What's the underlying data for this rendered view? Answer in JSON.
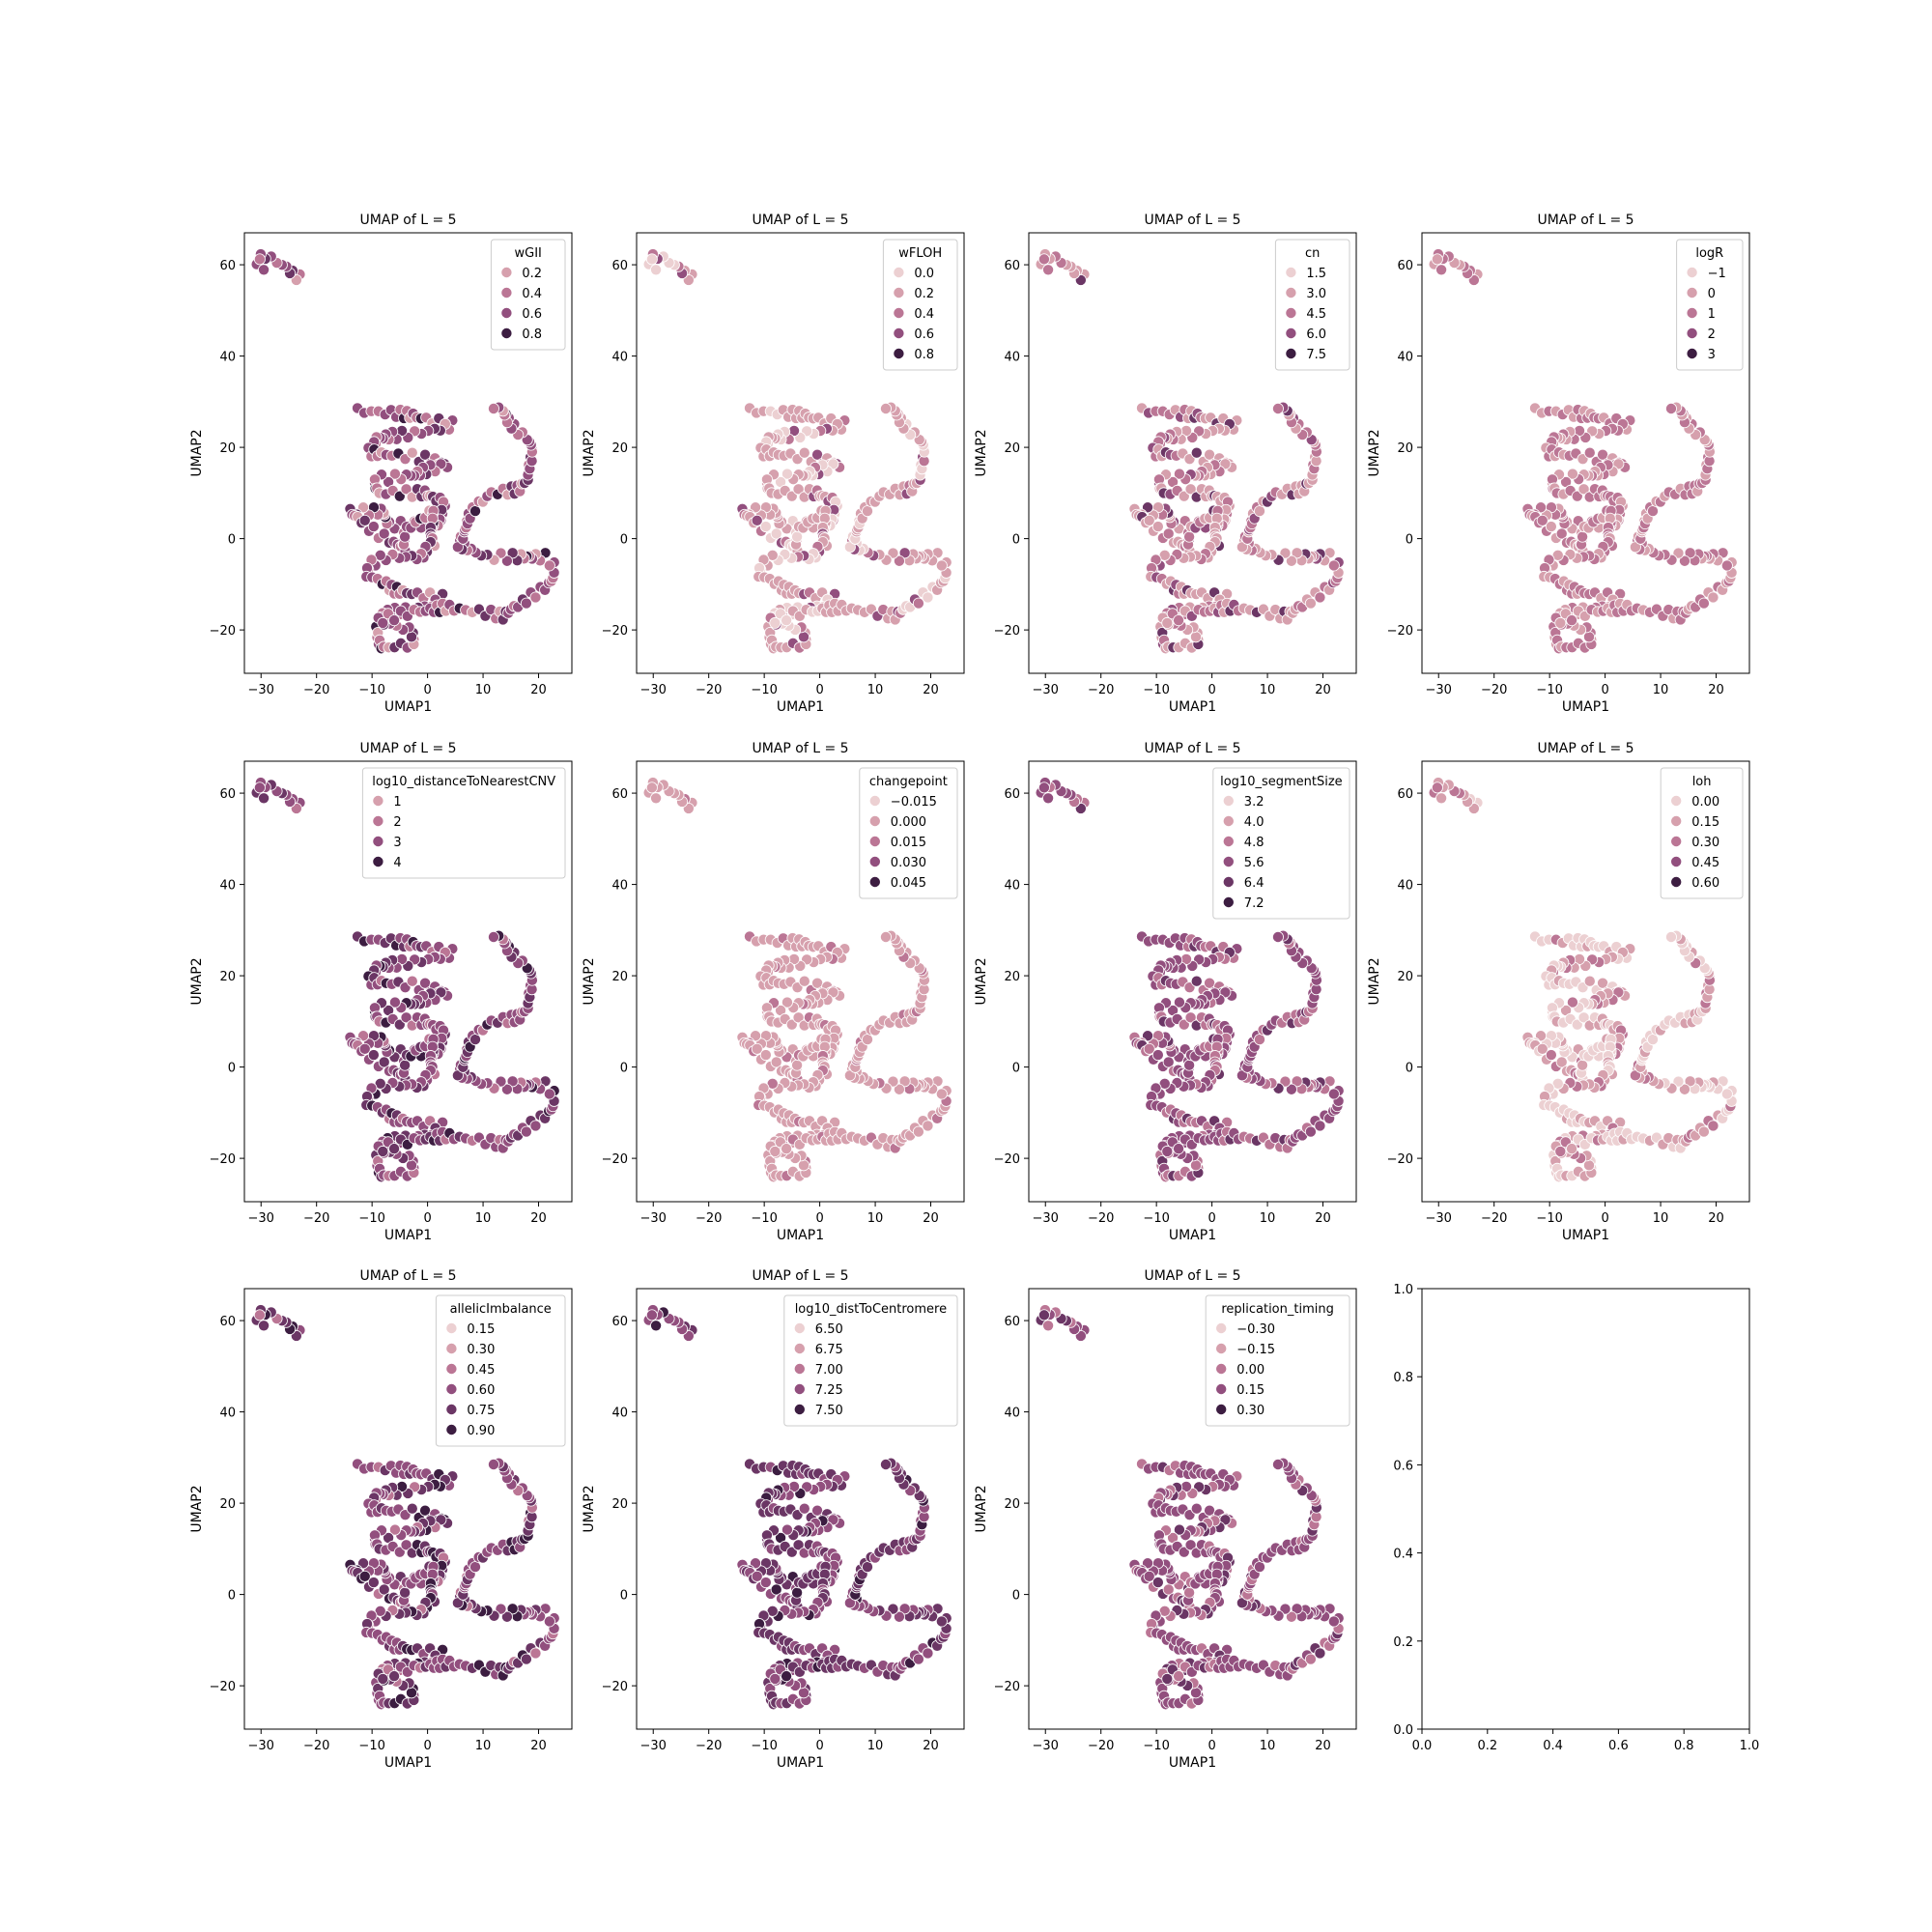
{
  "palette": [
    "#ecd0d2",
    "#d6a0ad",
    "#bb7695",
    "#924f7e",
    "#6b3665",
    "#3c1d41"
  ],
  "chart_data": [
    {
      "type": "scatter",
      "title": "UMAP of L = 5",
      "xlabel": "UMAP1",
      "ylabel": "UMAP2",
      "xlim": [
        -33,
        26
      ],
      "ylim": [
        -29.5,
        67
      ],
      "xticks": [
        "−30",
        "−20",
        "−10",
        "0",
        "10",
        "20"
      ],
      "yticks": [
        "−20",
        "0",
        "20",
        "40",
        "60"
      ],
      "legend": {
        "title": "wGII",
        "items": [
          "0.2",
          "0.4",
          "0.6",
          "0.8"
        ],
        "levels": [
          1,
          2,
          3,
          5
        ]
      },
      "pattern": [
        2,
        3,
        4,
        3,
        3,
        5,
        2,
        1,
        3,
        4,
        2,
        3
      ]
    },
    {
      "type": "scatter",
      "title": "UMAP of L = 5",
      "xlabel": "UMAP1",
      "ylabel": "UMAP2",
      "xlim": [
        -33,
        26
      ],
      "ylim": [
        -29.5,
        67
      ],
      "xticks": [
        "−30",
        "−20",
        "−10",
        "0",
        "10",
        "20"
      ],
      "yticks": [
        "−20",
        "0",
        "20",
        "40",
        "60"
      ],
      "legend": {
        "title": "wFLOH",
        "items": [
          "0.0",
          "0.2",
          "0.4",
          "0.6",
          "0.8"
        ],
        "levels": [
          0,
          1,
          2,
          3,
          5
        ]
      },
      "pattern": [
        1,
        0,
        1,
        1,
        2,
        1,
        0,
        1,
        1,
        3,
        1,
        0
      ]
    },
    {
      "type": "scatter",
      "title": "UMAP of L = 5",
      "xlabel": "UMAP1",
      "ylabel": "UMAP2",
      "xlim": [
        -33,
        26
      ],
      "ylim": [
        -29.5,
        67
      ],
      "xticks": [
        "−30",
        "−20",
        "−10",
        "0",
        "10",
        "20"
      ],
      "yticks": [
        "−20",
        "0",
        "20",
        "40",
        "60"
      ],
      "legend": {
        "title": "cn",
        "items": [
          "1.5",
          "3.0",
          "4.5",
          "6.0",
          "7.5"
        ],
        "levels": [
          0,
          1,
          2,
          3,
          5
        ]
      },
      "pattern": [
        1,
        2,
        1,
        3,
        1,
        1,
        2,
        4,
        1,
        1,
        2,
        1
      ]
    },
    {
      "type": "scatter",
      "title": "UMAP of L = 5",
      "xlabel": "UMAP1",
      "ylabel": "UMAP2",
      "xlim": [
        -33,
        26
      ],
      "ylim": [
        -29.5,
        67
      ],
      "xticks": [
        "−30",
        "−20",
        "−10",
        "0",
        "10",
        "20"
      ],
      "yticks": [
        "−20",
        "0",
        "20",
        "40",
        "60"
      ],
      "legend": {
        "title": "logR",
        "items": [
          "−1",
          "0",
          "1",
          "2",
          "3"
        ],
        "levels": [
          0,
          1,
          2,
          3,
          5
        ]
      },
      "pattern": [
        1,
        2,
        2,
        1,
        2,
        2,
        1,
        2,
        1,
        2,
        2,
        1
      ]
    },
    {
      "type": "scatter",
      "title": "UMAP of L = 5",
      "xlabel": "UMAP1",
      "ylabel": "UMAP2",
      "xlim": [
        -33,
        26
      ],
      "ylim": [
        -29.5,
        67
      ],
      "xticks": [
        "−30",
        "−20",
        "−10",
        "0",
        "10",
        "20"
      ],
      "yticks": [
        "−20",
        "0",
        "20",
        "40",
        "60"
      ],
      "legend": {
        "title": "log10_distanceToNearestCNV",
        "items": [
          "1",
          "2",
          "3",
          "4"
        ],
        "levels": [
          1,
          2,
          3,
          5
        ]
      },
      "pattern": [
        3,
        4,
        3,
        5,
        3,
        4,
        3,
        2,
        4,
        3,
        3,
        4
      ]
    },
    {
      "type": "scatter",
      "title": "UMAP of L = 5",
      "xlabel": "UMAP1",
      "ylabel": "UMAP2",
      "xlim": [
        -33,
        26
      ],
      "ylim": [
        -29.5,
        67
      ],
      "xticks": [
        "−30",
        "−20",
        "−10",
        "0",
        "10",
        "20"
      ],
      "yticks": [
        "−20",
        "0",
        "20",
        "40",
        "60"
      ],
      "legend": {
        "title": "changepoint",
        "items": [
          "−0.015",
          "0.000",
          "0.015",
          "0.030",
          "0.045"
        ],
        "levels": [
          0,
          1,
          2,
          3,
          5
        ]
      },
      "pattern": [
        1,
        1,
        2,
        1,
        1,
        1,
        1,
        1,
        2,
        1,
        1,
        1
      ]
    },
    {
      "type": "scatter",
      "title": "UMAP of L = 5",
      "xlabel": "UMAP1",
      "ylabel": "UMAP2",
      "xlim": [
        -33,
        26
      ],
      "ylim": [
        -29.5,
        67
      ],
      "xticks": [
        "−30",
        "−20",
        "−10",
        "0",
        "10",
        "20"
      ],
      "yticks": [
        "−20",
        "0",
        "20",
        "40",
        "60"
      ],
      "legend": {
        "title": "log10_segmentSize",
        "items": [
          "3.2",
          "4.0",
          "4.8",
          "5.6",
          "6.4",
          "7.2"
        ],
        "levels": [
          0,
          1,
          2,
          3,
          4,
          5
        ]
      },
      "pattern": [
        2,
        3,
        2,
        3,
        3,
        2,
        3,
        4,
        3,
        2,
        3,
        3
      ]
    },
    {
      "type": "scatter",
      "title": "UMAP of L = 5",
      "xlabel": "UMAP1",
      "ylabel": "UMAP2",
      "xlim": [
        -33,
        26
      ],
      "ylim": [
        -29.5,
        67
      ],
      "xticks": [
        "−30",
        "−20",
        "−10",
        "0",
        "10",
        "20"
      ],
      "yticks": [
        "−20",
        "0",
        "20",
        "40",
        "60"
      ],
      "legend": {
        "title": "loh",
        "items": [
          "0.00",
          "0.15",
          "0.30",
          "0.45",
          "0.60"
        ],
        "levels": [
          0,
          1,
          2,
          3,
          5
        ]
      },
      "pattern": [
        0,
        1,
        0,
        0,
        1,
        0,
        2,
        1,
        0,
        1,
        0,
        2
      ]
    },
    {
      "type": "scatter",
      "title": "UMAP of L = 5",
      "xlabel": "UMAP1",
      "ylabel": "UMAP2",
      "xlim": [
        -33,
        26
      ],
      "ylim": [
        -29.5,
        67
      ],
      "xticks": [
        "−30",
        "−20",
        "−10",
        "0",
        "10",
        "20"
      ],
      "yticks": [
        "−20",
        "0",
        "20",
        "40",
        "60"
      ],
      "legend": {
        "title": "allelicImbalance",
        "items": [
          "0.15",
          "0.30",
          "0.45",
          "0.60",
          "0.75",
          "0.90"
        ],
        "levels": [
          0,
          1,
          2,
          3,
          4,
          5
        ]
      },
      "pattern": [
        3,
        4,
        5,
        3,
        4,
        3,
        2,
        4,
        3,
        5,
        3,
        4
      ]
    },
    {
      "type": "scatter",
      "title": "UMAP of L = 5",
      "xlabel": "UMAP1",
      "ylabel": "UMAP2",
      "xlim": [
        -33,
        26
      ],
      "ylim": [
        -29.5,
        67
      ],
      "xticks": [
        "−30",
        "−20",
        "−10",
        "0",
        "10",
        "20"
      ],
      "yticks": [
        "−20",
        "0",
        "20",
        "40",
        "60"
      ],
      "legend": {
        "title": "log10_distToCentromere",
        "items": [
          "6.50",
          "6.75",
          "7.00",
          "7.25",
          "7.50"
        ],
        "levels": [
          0,
          1,
          2,
          3,
          5
        ]
      },
      "pattern": [
        4,
        5,
        4,
        4,
        3,
        4,
        3,
        3,
        4,
        3,
        4,
        3
      ]
    },
    {
      "type": "scatter",
      "title": "UMAP of L = 5",
      "xlabel": "UMAP1",
      "ylabel": "UMAP2",
      "xlim": [
        -33,
        26
      ],
      "ylim": [
        -29.5,
        67
      ],
      "xticks": [
        "−30",
        "−20",
        "−10",
        "0",
        "10",
        "20"
      ],
      "yticks": [
        "−20",
        "0",
        "20",
        "40",
        "60"
      ],
      "legend": {
        "title": "replication_timing",
        "items": [
          "−0.30",
          "−0.15",
          "0.00",
          "0.15",
          "0.30"
        ],
        "levels": [
          0,
          1,
          2,
          3,
          5
        ]
      },
      "pattern": [
        3,
        2,
        3,
        3,
        2,
        3,
        4,
        3,
        2,
        3,
        3,
        4
      ]
    },
    {
      "type": "empty",
      "xlim": [
        0,
        1
      ],
      "ylim": [
        0,
        1
      ],
      "xticks": [
        "0.0",
        "0.2",
        "0.4",
        "0.6",
        "0.8",
        "1.0"
      ],
      "yticks": [
        "0.0",
        "0.2",
        "0.4",
        "0.6",
        "0.8",
        "1.0"
      ]
    }
  ]
}
